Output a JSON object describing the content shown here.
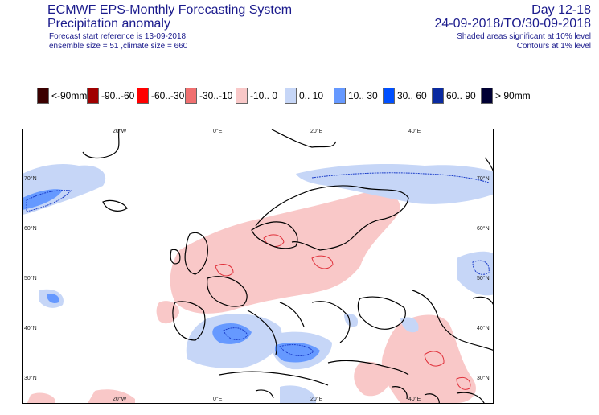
{
  "header": {
    "title": "ECMWF EPS-Monthly Forecasting System",
    "subtitle": "Precipitation anomaly",
    "line3": "Forecast start reference is 13-09-2018",
    "line4": "ensemble size = 51  ,climate size = 660",
    "period_label": "Day 12-18",
    "dates": "24-09-2018/TO/30-09-2018",
    "note1": "Shaded areas significant at 10% level",
    "note2": "Contours at 1% level"
  },
  "legend": [
    {
      "label": "<-90mm",
      "color": "#3b0000"
    },
    {
      "label": "-90..-60",
      "color": "#a00000"
    },
    {
      "label": "-60..-30",
      "color": "#ff0000"
    },
    {
      "label": "-30..-10",
      "color": "#f07070"
    },
    {
      "label": "-10..  0",
      "color": "#f9c8c8"
    },
    {
      "label": "0..  10",
      "color": "#c6d6f7"
    },
    {
      "label": "10..  30",
      "color": "#6699ff"
    },
    {
      "label": "30..  60",
      "color": "#0050ff"
    },
    {
      "label": "60..  90",
      "color": "#0a2aa0"
    },
    {
      "label": ">  90mm",
      "color": "#000033"
    }
  ],
  "map": {
    "top_lon_labels": [
      "20°W",
      "0°E",
      "20°E",
      "40°E"
    ],
    "bottom_lon_labels": [
      "20°W",
      "0°E",
      "20°E",
      "40°E"
    ],
    "left_lat_labels": [
      "70°N",
      "60°N",
      "50°N",
      "40°N",
      "30°N"
    ],
    "right_lat_labels": [
      "70°N",
      "60°N",
      "50°N",
      "40°N",
      "30°N"
    ],
    "colors": {
      "coast": "#000000",
      "dry_light": "#f9c8c8",
      "dry_dark": "#e0303a",
      "wet_light": "#c6d6f7",
      "wet_mid": "#6699ff",
      "wet_dark": "#1a3cc8"
    }
  }
}
